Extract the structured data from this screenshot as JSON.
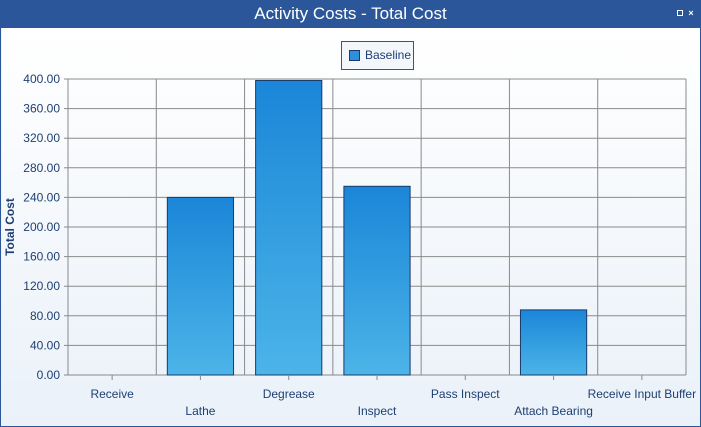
{
  "window": {
    "title": "Activity Costs - Total Cost",
    "restore_icon": "restore-icon",
    "close_icon": "close-icon",
    "close_glyph": "×"
  },
  "legend": {
    "label": "Baseline"
  },
  "colors": {
    "bar_top": "#1b86d8",
    "bar_bottom": "#4cb4e8",
    "bar_border": "#1b3a6b",
    "grid": "#8a8a8a",
    "text": "#1e3f73"
  },
  "chart_data": {
    "type": "bar",
    "title": "Activity Costs - Total Cost",
    "xlabel": "",
    "ylabel": "Total Cost",
    "ylim": [
      0,
      400
    ],
    "yticks": [
      "0.00",
      "40.00",
      "80.00",
      "120.00",
      "160.00",
      "200.00",
      "240.00",
      "280.00",
      "320.00",
      "360.00",
      "400.00"
    ],
    "categories": [
      "Receive",
      "Lathe",
      "Degrease",
      "Inspect",
      "Pass Inspect",
      "Attach Bearing",
      "Receive Input Buffer"
    ],
    "series": [
      {
        "name": "Baseline",
        "values": [
          0,
          240,
          398,
          255,
          0,
          88,
          0
        ]
      }
    ],
    "grid": true,
    "legend_position": "top-center"
  }
}
